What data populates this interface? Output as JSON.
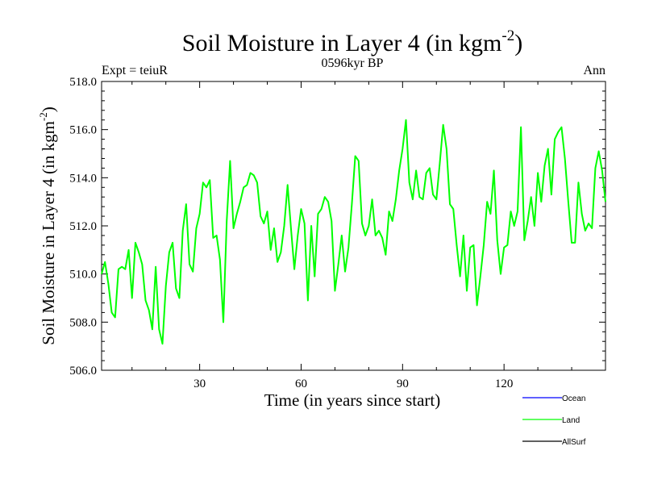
{
  "chart_data": {
    "type": "line",
    "title": "Soil Moisture in Layer 4 (in kgm",
    "title_sup": "-2",
    "title_close": ")",
    "subtitle": "0596kyr BP",
    "left_label": "Expt = teiuR",
    "right_label": "Ann",
    "xlabel": "Time (in years since start)",
    "ylabel": "Soil Moisture in Layer 4 (in kgm",
    "ylabel_sup": "-2",
    "ylabel_close": ")",
    "xlim": [
      1,
      150
    ],
    "ylim": [
      506,
      518
    ],
    "x_ticks": [
      30,
      60,
      90,
      120
    ],
    "x_tick_labels": [
      "30",
      "60",
      "90",
      "120"
    ],
    "y_ticks": [
      506,
      508,
      510,
      512,
      514,
      516,
      518
    ],
    "y_tick_labels": [
      "506.0",
      "508.0",
      "510.0",
      "512.0",
      "514.0",
      "516.0",
      "518.0"
    ],
    "legend": [
      {
        "name": "Ocean",
        "color": "#0000ff"
      },
      {
        "name": "Land",
        "color": "#00ff00"
      },
      {
        "name": "AllSurf",
        "color": "#000000"
      }
    ],
    "series": [
      {
        "name": "Land",
        "color": "#00ff00",
        "x_start": 1,
        "values": [
          510.0,
          510.5,
          509.6,
          508.4,
          508.2,
          510.2,
          510.3,
          510.2,
          511.0,
          509.0,
          511.3,
          510.9,
          510.4,
          508.9,
          508.5,
          507.7,
          510.3,
          507.7,
          507.1,
          509.5,
          510.9,
          511.3,
          509.4,
          509.0,
          511.8,
          512.9,
          510.4,
          510.1,
          511.9,
          512.5,
          513.8,
          513.6,
          513.9,
          511.5,
          511.6,
          510.6,
          508.0,
          512.2,
          514.7,
          511.9,
          512.5,
          513.0,
          513.6,
          513.7,
          514.2,
          514.1,
          513.8,
          512.4,
          512.1,
          512.6,
          511.0,
          511.9,
          510.5,
          510.9,
          512.0,
          513.7,
          511.9,
          510.2,
          511.6,
          512.7,
          512.1,
          508.9,
          512.0,
          509.9,
          512.5,
          512.7,
          513.2,
          513.0,
          512.2,
          509.3,
          510.4,
          511.6,
          510.1,
          511.1,
          512.9,
          514.9,
          514.7,
          512.1,
          511.6,
          512.0,
          513.1,
          511.6,
          511.8,
          511.5,
          510.8,
          512.6,
          512.2,
          513.1,
          514.3,
          515.2,
          516.4,
          513.8,
          513.1,
          514.3,
          513.2,
          513.1,
          514.2,
          514.4,
          513.3,
          513.1,
          514.6,
          516.2,
          515.2,
          512.9,
          512.7,
          511.2,
          509.9,
          511.6,
          509.3,
          511.1,
          511.2,
          508.7,
          509.9,
          511.2,
          513.0,
          512.5,
          514.3,
          511.4,
          510.0,
          511.1,
          511.2,
          512.6,
          512.0,
          512.6,
          516.1,
          511.4,
          512.2,
          513.2,
          512.0,
          514.2,
          513.0,
          514.5,
          515.2,
          513.3,
          515.6,
          515.9,
          516.1,
          514.8,
          513.0,
          511.3,
          511.3,
          513.8,
          512.5,
          511.8,
          512.1,
          511.9,
          514.4,
          515.1,
          514.3,
          513.0
        ]
      }
    ]
  }
}
